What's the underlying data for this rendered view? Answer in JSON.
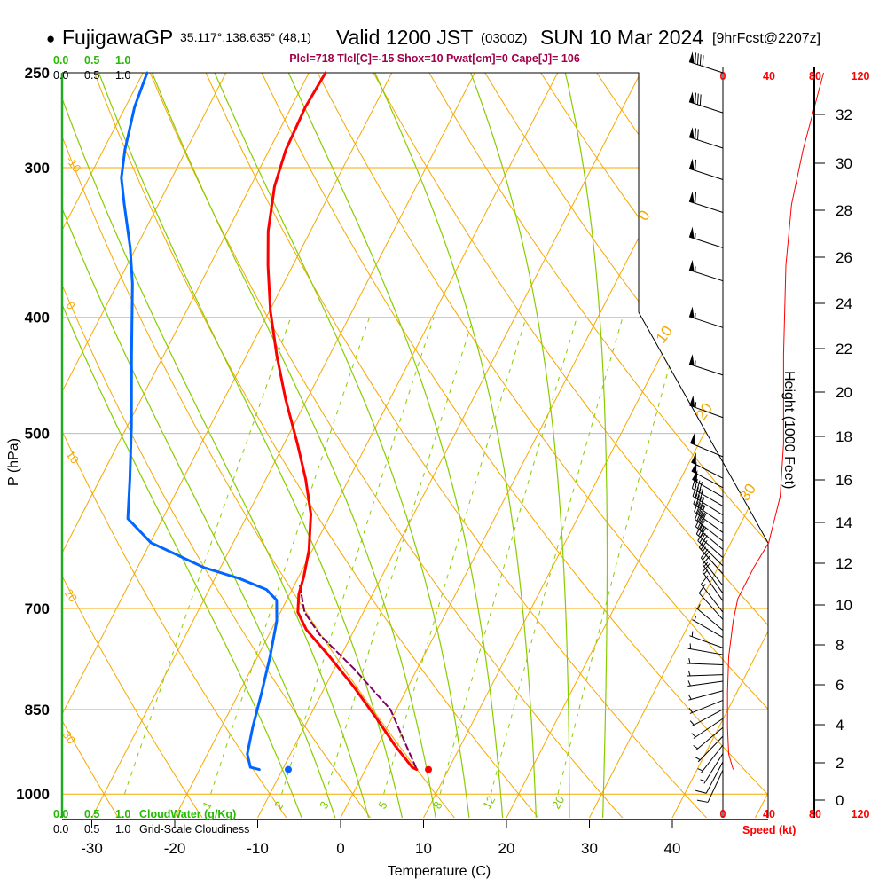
{
  "header": {
    "bullet": "●",
    "station": "FujigawaGP",
    "coords": "35.117°,138.635° (48,1)",
    "valid": "Valid 1200 JST",
    "utc": "(0300Z)",
    "date": "SUN 10 Mar 2024",
    "forecast": "[9hrFcst@2207z]",
    "indices": "Plcl=718 Tlcl[C]=-15 Shox=10 Pwat[cm]=0 Cape[J]= 106"
  },
  "cloud_axis": {
    "top_green": [
      "0.0",
      "0.5",
      "1.0"
    ],
    "top_black": [
      "0.0",
      "0.5",
      "1.0"
    ],
    "bottom_green": [
      "0.0",
      "0.5",
      "1.0"
    ],
    "bottom_green_label": "CloudWater (g/Kg)",
    "bottom_black": [
      "0.0",
      "0.5",
      "1.0"
    ],
    "bottom_black_label": "Grid-Scale Cloudiness"
  },
  "speed_axis": {
    "ticks_top": [
      "0",
      "40",
      "80",
      "120"
    ],
    "ticks_bottom": [
      "0",
      "40",
      "80",
      "120"
    ],
    "label": "Speed (kt)"
  },
  "height_axis": {
    "label": "Height (1000 Feet)",
    "ticks": [
      "0",
      "2",
      "4",
      "6",
      "8",
      "10",
      "12",
      "14",
      "16",
      "18",
      "20",
      "22",
      "24",
      "26",
      "28",
      "30",
      "32"
    ]
  },
  "colors": {
    "temperature": "#ff0000",
    "dewpoint": "#0066ff",
    "parcel": "#800060",
    "isotherm": "#f5a800",
    "moist_adiabat": "#88cc00",
    "mixing_ratio": "#88cc00",
    "cloud_axis": "#22aa22"
  },
  "chart_data": {
    "type": "skew-t",
    "title": "FujigawaGP Valid 1200 JST (0300Z) SUN 10 Mar 2024",
    "xlabel": "Temperature (C)",
    "ylabel": "P (hPa)",
    "x_ticks": [
      "-30",
      "-20",
      "-10",
      "0",
      "10",
      "20",
      "30",
      "40"
    ],
    "p_ticks": [
      "250",
      "300",
      "400",
      "500",
      "700",
      "850",
      "1000"
    ],
    "isotherm_labels": [
      "0",
      "10",
      "20",
      "30"
    ],
    "dry_adiabat_labels": [
      "-10",
      "0",
      "10",
      "20",
      "30"
    ],
    "mixing_ratio_labels": [
      "1",
      "2",
      "3",
      "5",
      "8",
      "12",
      "20"
    ],
    "temperature": {
      "p": [
        250,
        267,
        290,
        311,
        339,
        362,
        395,
        430,
        468,
        510,
        546,
        584,
        626,
        658,
        681,
        705,
        729,
        768,
        815,
        865,
        910,
        950,
        954
      ],
      "t": [
        -48.0,
        -48.3,
        -48.0,
        -47.1,
        -45.1,
        -43.0,
        -39.9,
        -36.4,
        -32.6,
        -28.4,
        -25.2,
        -22.4,
        -20.4,
        -19.4,
        -18.9,
        -17.9,
        -15.8,
        -11.3,
        -6.4,
        -1.8,
        2.0,
        5.5,
        6.2
      ]
    },
    "dewpoint": {
      "p": [
        250,
        267,
        290,
        306,
        322,
        350,
        375,
        430,
        493,
        546,
        589,
        617,
        647,
        661,
        675,
        689,
        717,
        768,
        822,
        880,
        926,
        950,
        954
      ],
      "t": [
        -69.5,
        -68.9,
        -67.4,
        -66.1,
        -64.1,
        -60.7,
        -58.2,
        -53.9,
        -49.5,
        -46.4,
        -44.2,
        -39.9,
        -32.0,
        -27.0,
        -23.1,
        -21.2,
        -19.9,
        -18.5,
        -17.3,
        -16.2,
        -15.2,
        -14.0,
        -12.8
      ]
    },
    "parcel": {
      "p": [
        670,
        705,
        736,
        787,
        850,
        954
      ],
      "t": [
        -19.3,
        -17.1,
        -13.9,
        -7.5,
        -0.7,
        6.2
      ]
    },
    "surface_temperature": {
      "p": 954,
      "t": 7.6
    },
    "surface_dewpoint": {
      "p": 954,
      "t": -9.3
    },
    "wind_speed_profile": {
      "p": [
        250,
        267,
        290,
        322,
        362,
        430,
        510,
        565,
        617,
        647,
        687,
        717,
        768,
        822,
        880,
        926,
        954
      ],
      "kt": [
        88,
        80,
        70,
        60,
        55,
        53,
        53,
        50,
        40,
        27,
        13,
        9,
        5,
        4,
        4,
        5,
        9
      ]
    },
    "winds": {
      "p": [
        250,
        270,
        289,
        307,
        327,
        350,
        373,
        408,
        447,
        485,
        523,
        545,
        555,
        565,
        575,
        585,
        595,
        605,
        615,
        625,
        635,
        645,
        655,
        670,
        680,
        690,
        705,
        715,
        730,
        740,
        755,
        765,
        780,
        795,
        805,
        820,
        835,
        850,
        865,
        880,
        895,
        910,
        925,
        940,
        955
      ],
      "kt": [
        88,
        80,
        70,
        62,
        58,
        55,
        54,
        53,
        53,
        53,
        51,
        50,
        49,
        48,
        47,
        46,
        45,
        43,
        40,
        36,
        32,
        28,
        24,
        18,
        15,
        13,
        10,
        9,
        7,
        6,
        6,
        5,
        5,
        4,
        4,
        4,
        4,
        4,
        4,
        5,
        5,
        6,
        7,
        8,
        9
      ],
      "dir": [
        288,
        288,
        288,
        288,
        288,
        288,
        288,
        288,
        288,
        290,
        293,
        297,
        298,
        300,
        300,
        302,
        304,
        306,
        308,
        310,
        312,
        315,
        318,
        322,
        325,
        325,
        322,
        318,
        310,
        300,
        290,
        280,
        272,
        268,
        262,
        255,
        248,
        242,
        236,
        230,
        224,
        218,
        212,
        208,
        205
      ]
    }
  }
}
